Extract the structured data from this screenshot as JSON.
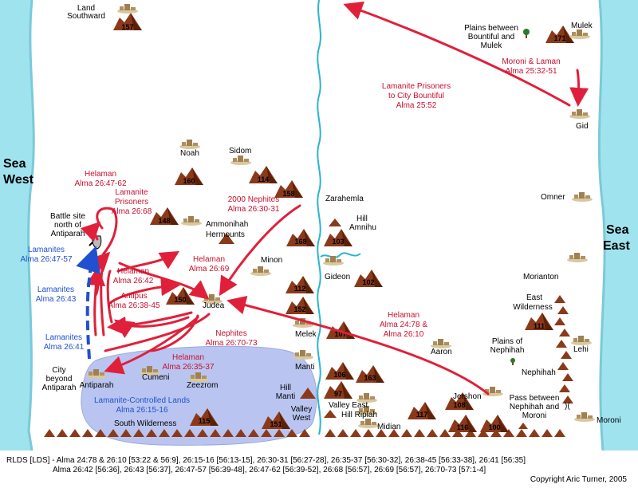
{
  "seas": {
    "west_line1": "Sea",
    "west_line2": "West",
    "east_line1": "Sea",
    "east_line2": "East"
  },
  "places": {
    "land_southward_1": "Land",
    "land_southward_2": "Southward",
    "plains_bountiful_1": "Plains between",
    "plains_bountiful_2": "Bountiful and",
    "plains_bountiful_3": "Mulek",
    "mulek": "Mulek",
    "gid": "Gid",
    "noah": "Noah",
    "sidom": "Sidom",
    "zarahemla": "Zarahemla",
    "hill_amnihu_1": "Hill",
    "hill_amnihu_2": "Amnihu",
    "ammonihah": "Ammonihah",
    "hermounts": "Hermounts",
    "battle_1": "Battle site",
    "battle_2": "north of",
    "battle_3": "Antiparah",
    "minon": "Minon",
    "gideon": "Gideon",
    "judea": "Judea",
    "melek": "Melek",
    "omner": "Omner",
    "morianton": "Morianton",
    "east_wild_1": "East",
    "east_wild_2": "Wilderness",
    "plains_nephihah_1": "Plains of",
    "plains_nephihah_2": "Nephihah",
    "nephihah": "Nephihah",
    "lehi": "Lehi",
    "aaron": "Aaron",
    "manti": "Manti",
    "hill_manti_1": "Hill",
    "hill_manti_2": "Manti",
    "valley_west_1": "Valley",
    "valley_west_2": "West",
    "valley_east": "Valley East",
    "hill_riplah": "Hill Riplah",
    "midian": "Midian",
    "jershon": "Jershon",
    "pass_1": "Pass between",
    "pass_2": "Nephihah and",
    "pass_3": "Moroni",
    "moroni": "Moroni",
    "city_beyond_1": "City",
    "city_beyond_2": "beyond",
    "city_beyond_3": "Antiparah",
    "antiparah": "Antiparah",
    "cumeni": "Cumeni",
    "zeezrom": "Zeezrom",
    "south_wilderness": "South Wilderness"
  },
  "region": {
    "line1": "Lamanite-Controlled Lands",
    "line2": "Alma 26:15-16"
  },
  "numbers": {
    "n157": "157",
    "n171": "171",
    "n160": "160",
    "n114": "114",
    "n158": "158",
    "n148": "148",
    "n168": "168",
    "n103": "103",
    "n112": "112",
    "n102": "102",
    "n150": "150",
    "n152": "152",
    "n107": "107",
    "n111": "111",
    "n106": "106",
    "n163": "163",
    "n97": "97",
    "n108": "108",
    "n117": "117",
    "n116": "116",
    "n100": "100",
    "n115": "115",
    "n151": "151"
  },
  "annotations": {
    "moroni_laman_1": "Moroni & Laman",
    "moroni_laman_2": "Alma 25:32-51",
    "prisoners_bountiful_1": "Lamanite Prisoners",
    "prisoners_bountiful_2": "to City Bountiful",
    "prisoners_bountiful_3": "Alma 25:52",
    "helaman_4762_1": "Helaman",
    "helaman_4762_2": "Alma 26:47-62",
    "lam_prisoners_1": "Lamanite",
    "lam_prisoners_2": "Prisoners",
    "lam_prisoners_3": "Alma 26:68",
    "nephites2000_1": "2000 Nephites",
    "nephites2000_2": "Alma 26:30-31",
    "helaman_2669_1": "Helaman",
    "helaman_2669_2": "Alma 26:69",
    "helaman_2642_1": "Helaman",
    "helaman_2642_2": "Alma 26:42",
    "antipus_1": "Antipus",
    "antipus_2": "Alma 26:38-45",
    "nephites_7073_1": "Nephites",
    "nephites_7073_2": "Alma 26:70-73",
    "helaman_3537_1": "Helaman",
    "helaman_3537_2": "Alma 26:35-37",
    "helaman_2478_1": "Helaman",
    "helaman_2478_2": "Alma 24:78 &",
    "helaman_2478_3": "Alma 26:10",
    "lamanites_4757_1": "Lamanites",
    "lamanites_4757_2": "Alma 26:47-57",
    "lamanites_43_1": "Lamanites",
    "lamanites_43_2": "Alma 26:43",
    "lamanites_41_1": "Lamanites",
    "lamanites_41_2": "Alma 26:41"
  },
  "footer": {
    "line1": "RLDS [LDS] - Alma 24:78 & 26:10 [53:22 & 56:9], 26:15-16 [56:13-15], 26:30-31 [56:27-28], 26:35-37 [56:30-32], 26:38-45 [56:33-38], 26:41 [56:35]",
    "line2": "Alma 26:42 [56:36], 26:43 [56:37], 26:47-57 [56:39-48], 26:47-62 [56:39-52], 26:68 [56:57], 26:69 [56:57], 26:70-73 [57:1-4]",
    "copyright": "Copyright Aric Turner, 2005"
  },
  "colors": {
    "sea": "#9fe3ef",
    "region": "#b9c5f0",
    "route": "#e0203a",
    "lamanite": "#2050d0",
    "city": "#b09060",
    "mountain": "#8a3a1a"
  }
}
